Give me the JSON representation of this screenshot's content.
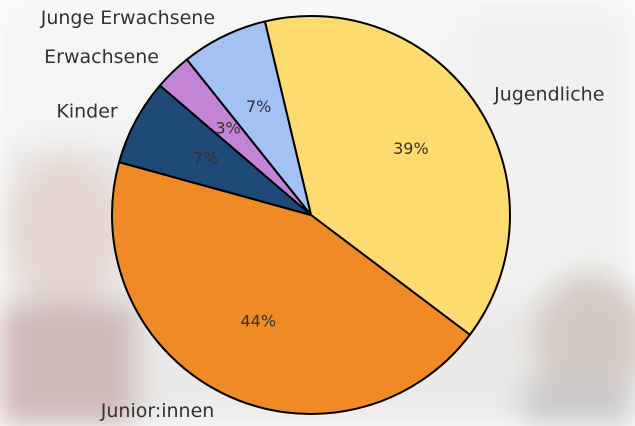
{
  "chart_data": {
    "type": "pie",
    "categories": [
      "Jugendliche",
      "Junior:innen",
      "Kinder",
      "Erwachsene",
      "Junge Erwachsene"
    ],
    "values": [
      39,
      44,
      7,
      3,
      7
    ],
    "value_labels": [
      "39%",
      "44%",
      "7%",
      "3%",
      "7%"
    ],
    "colors": [
      "#fedb6f",
      "#f08a27",
      "#1f4a78",
      "#c484d6",
      "#a3c1f2"
    ]
  }
}
